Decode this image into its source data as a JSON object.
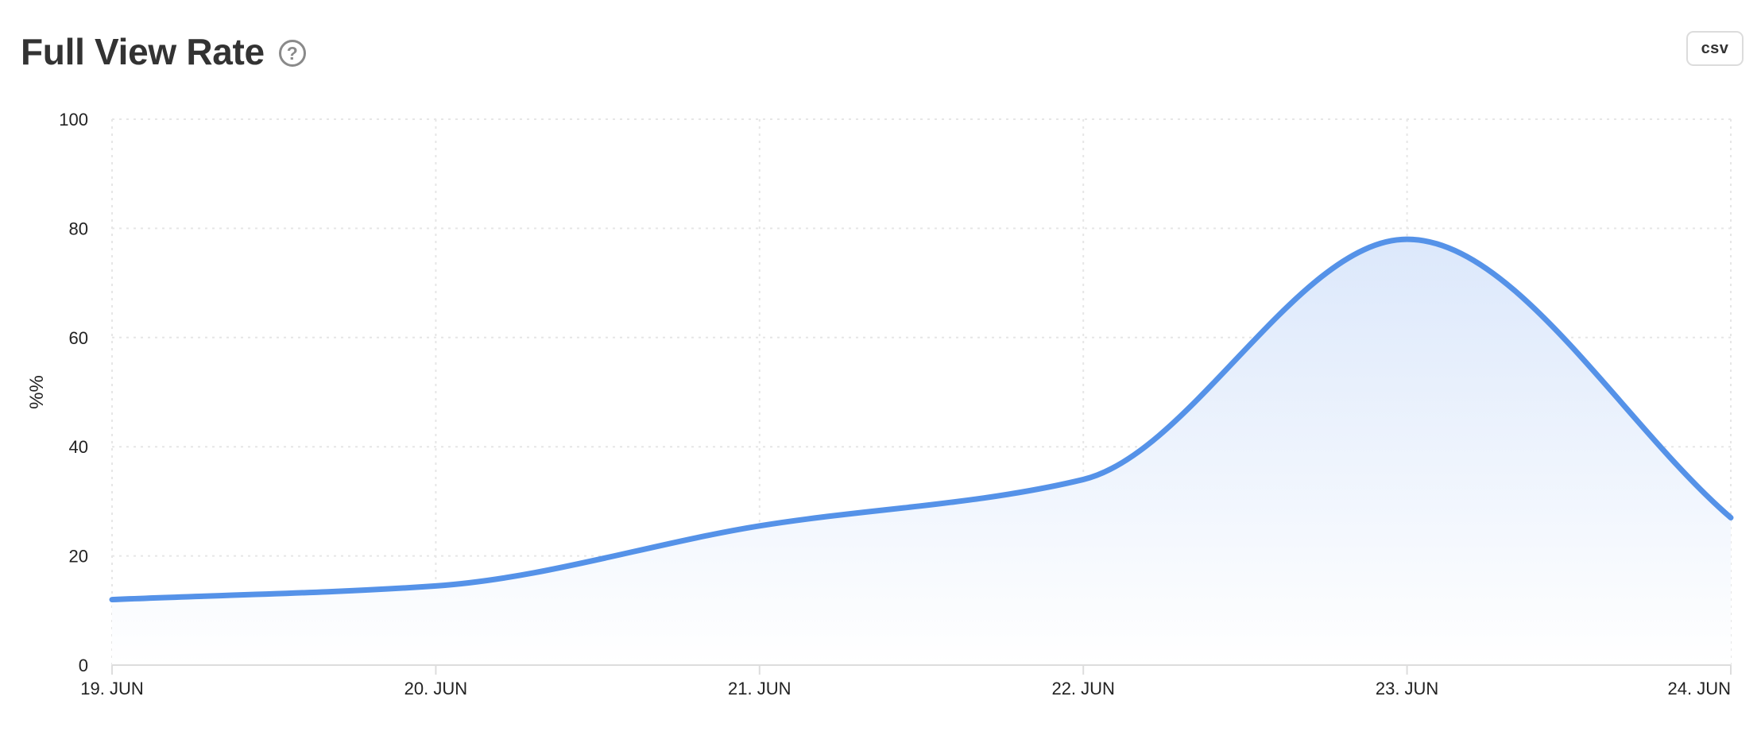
{
  "header": {
    "title": "Full View Rate",
    "help_icon_glyph": "?",
    "help_icon": "question-circle-icon"
  },
  "toolbar": {
    "csv_label": "csv"
  },
  "chart_data": {
    "type": "area",
    "title": "Full View Rate",
    "xlabel": "",
    "ylabel": "%%",
    "categories": [
      "19. JUN",
      "20. JUN",
      "21. JUN",
      "22. JUN",
      "23. JUN",
      "24. JUN"
    ],
    "series": [
      {
        "values": [
          12,
          14.5,
          25.5,
          34,
          78,
          27
        ]
      }
    ],
    "ylim": [
      0,
      100
    ],
    "yticks": [
      0,
      20,
      40,
      60,
      80,
      100
    ],
    "grid": true,
    "legend": "none",
    "colors": {
      "line": "#5592e8",
      "fill_top": "#dce8fb",
      "fill_bottom": "#ffffff",
      "grid": "#e6e6e6",
      "axis": "#dddddd"
    }
  }
}
